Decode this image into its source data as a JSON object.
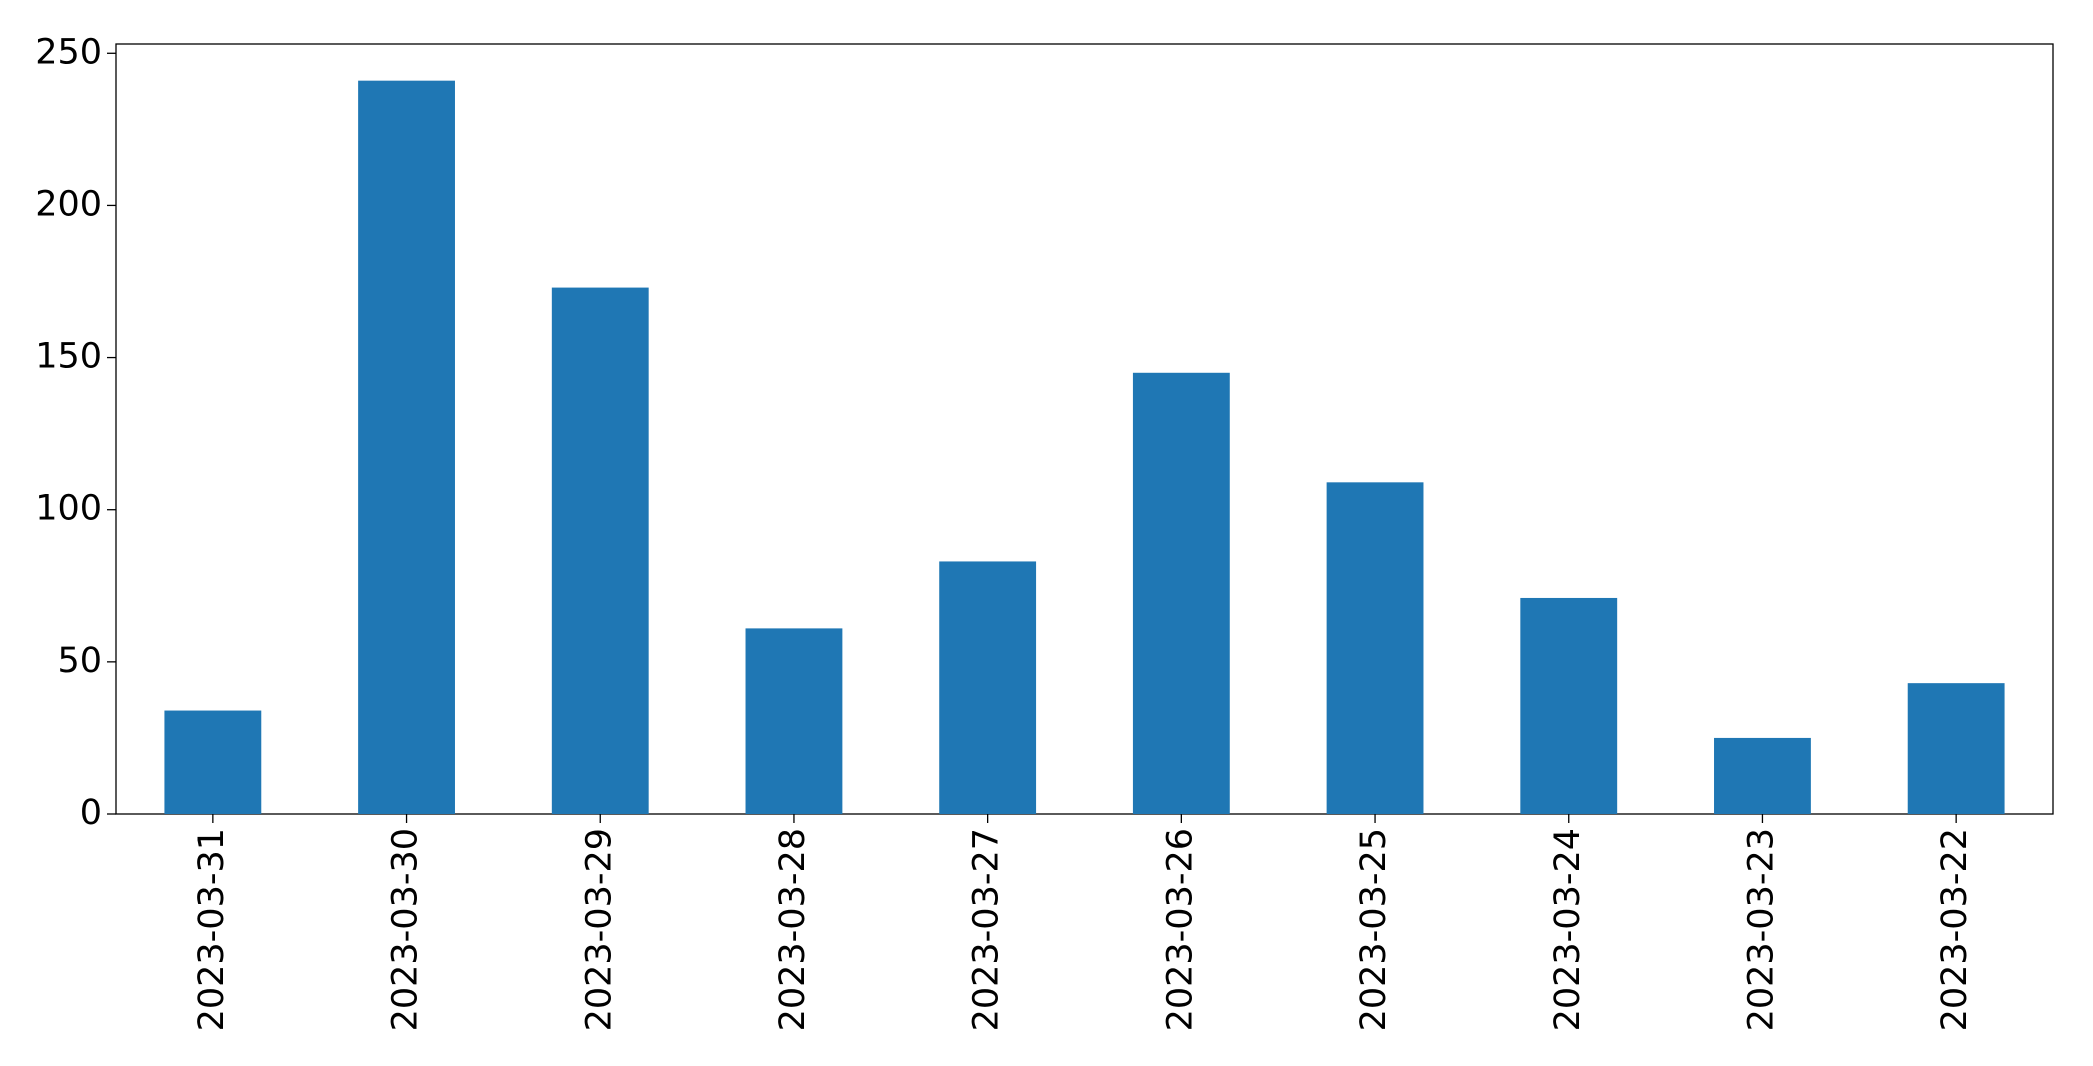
{
  "chart_data": {
    "type": "bar",
    "categories": [
      "2023-03-31",
      "2023-03-30",
      "2023-03-29",
      "2023-03-28",
      "2023-03-27",
      "2023-03-26",
      "2023-03-25",
      "2023-03-24",
      "2023-03-23",
      "2023-03-22"
    ],
    "values": [
      34,
      241,
      173,
      61,
      83,
      145,
      109,
      71,
      25,
      43
    ],
    "color": "#1f77b4",
    "ylim": [
      0,
      253.05
    ],
    "yticks": [
      0,
      50,
      100,
      150,
      200,
      250
    ],
    "grid": false
  }
}
